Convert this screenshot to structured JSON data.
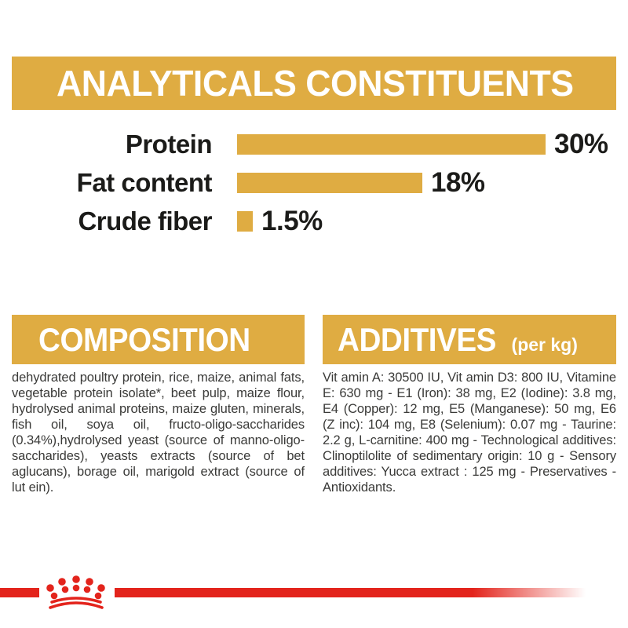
{
  "page": {
    "title": "ANALYTICALS CONSTITUENTS"
  },
  "colors": {
    "accent_gold": "#DFAC42",
    "brand_red": "#E3241C",
    "chart_text": "#1B1B19",
    "body_text": "#3A3A38",
    "header_text": "#FFFFFF"
  },
  "chart_data": {
    "type": "bar",
    "orientation": "horizontal",
    "title": "ANALYTICALS CONSTITUENTS",
    "categories": [
      "Protein",
      "Fat content",
      "Crude fiber"
    ],
    "values": [
      30,
      18,
      1.5
    ],
    "value_labels": [
      "30%",
      "18%",
      "1.5%"
    ],
    "unit": "%",
    "xlim": [
      0,
      30
    ],
    "bar_color": "#DFAC42",
    "grid": "off",
    "legend": "none"
  },
  "sections": {
    "composition": {
      "title": "COMPOSITION",
      "body": "dehydrated poultry protein, rice, maize, animal fats, vegetable protein isolate*, beet pulp, maize flour, hydrolysed animal proteins, maize gluten, minerals, fish oil, soya oil, fructo-oligo-saccharides (0.34%),hydrolysed yeast (source of manno-oligo-saccharides), yeasts extracts (source of bet aglucans), borage oil, marigold extract (source of lut ein)."
    },
    "additives": {
      "title": "ADDITIVES",
      "title_suffix": "(per kg)",
      "body": "Vit amin A: 30500 IU, Vit amin D3: 800 IU, Vitamine E: 630 mg - E1 (Iron): 38 mg, E2 (Iodine): 3.8 mg, E4 (Copper): 12 mg, E5 (Manganese): 50 mg, E6 (Z inc): 104 mg, E8 (Selenium): 0.07 mg - Taurine: 2.2 g, L-carnitine: 400 mg - Technological additives: Clinoptilolite of sedimentary origin: 10 g - Sensory additives: Yucca extract : 125 mg - Preservatives -Antioxidants."
    }
  },
  "footer": {
    "logo": "royal-canin-crown-logo"
  }
}
